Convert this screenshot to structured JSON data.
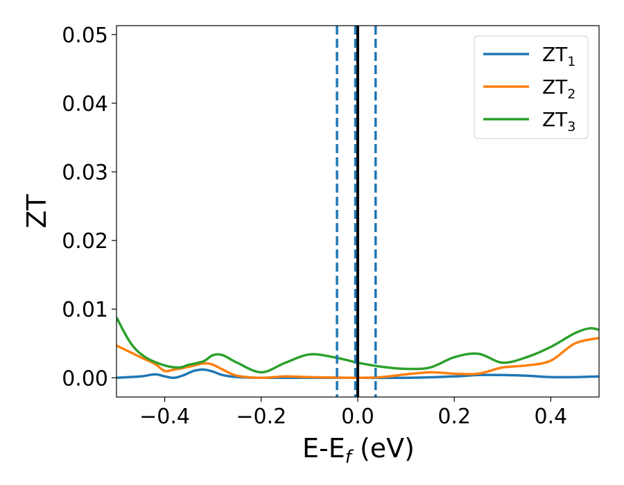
{
  "chart_data": {
    "type": "line",
    "xlabel": "E-E",
    "xlabel_sub": "f",
    "xlabel_unit": " (eV)",
    "ylabel": "ZT",
    "xlim": [
      -0.5,
      0.5
    ],
    "ylim": [
      -0.0028,
      0.0513
    ],
    "xticks": [
      -0.4,
      -0.2,
      0.0,
      0.2,
      0.4
    ],
    "xtick_labels": [
      "−0.4",
      "−0.2",
      "0.0",
      "0.2",
      "0.4"
    ],
    "yticks": [
      0.0,
      0.01,
      0.02,
      0.03,
      0.04,
      0.05
    ],
    "ytick_labels": [
      "0.00",
      "0.01",
      "0.02",
      "0.03",
      "0.04",
      "0.05"
    ],
    "grid": false,
    "legend_position": "top-right",
    "series": [
      {
        "name": "ZT",
        "name_sub": "1",
        "color": "#1f77b4",
        "x": [
          -0.5,
          -0.45,
          -0.42,
          -0.4,
          -0.38,
          -0.36,
          -0.34,
          -0.32,
          -0.3,
          -0.28,
          -0.25,
          -0.2,
          -0.1,
          0.0,
          0.1,
          0.2,
          0.25,
          0.3,
          0.35,
          0.4,
          0.45,
          0.5
        ],
        "y": [
          0.0,
          0.0002,
          0.0005,
          0.0002,
          0.0,
          0.0004,
          0.001,
          0.0012,
          0.0009,
          0.0004,
          0.0001,
          0.0,
          0.0,
          0.0,
          0.0,
          0.0002,
          0.0004,
          0.0004,
          0.0003,
          0.0001,
          0.0001,
          0.0002
        ]
      },
      {
        "name": "ZT",
        "name_sub": "2",
        "color": "#ff7f0e",
        "x": [
          -0.5,
          -0.45,
          -0.42,
          -0.4,
          -0.38,
          -0.35,
          -0.32,
          -0.3,
          -0.28,
          -0.25,
          -0.2,
          -0.15,
          -0.1,
          0.0,
          0.05,
          0.1,
          0.15,
          0.2,
          0.25,
          0.3,
          0.35,
          0.4,
          0.45,
          0.5
        ],
        "y": [
          0.0047,
          0.003,
          0.002,
          0.001,
          0.0012,
          0.0016,
          0.0021,
          0.0019,
          0.0012,
          0.0003,
          0.0,
          0.0002,
          0.0001,
          0.0,
          0.0001,
          0.0005,
          0.0008,
          0.0006,
          0.0006,
          0.0015,
          0.0018,
          0.0025,
          0.005,
          0.0058
        ]
      },
      {
        "name": "ZT",
        "name_sub": "3",
        "color": "#2ca02c",
        "x": [
          -0.5,
          -0.47,
          -0.44,
          -0.4,
          -0.37,
          -0.35,
          -0.32,
          -0.3,
          -0.28,
          -0.25,
          -0.2,
          -0.15,
          -0.1,
          -0.05,
          0.0,
          0.05,
          0.1,
          0.15,
          0.2,
          0.25,
          0.3,
          0.35,
          0.4,
          0.45,
          0.48,
          0.5
        ],
        "y": [
          0.0088,
          0.005,
          0.003,
          0.0018,
          0.0015,
          0.0019,
          0.0024,
          0.0033,
          0.0033,
          0.0022,
          0.0008,
          0.0022,
          0.0034,
          0.003,
          0.0022,
          0.0016,
          0.0013,
          0.0015,
          0.003,
          0.0035,
          0.0022,
          0.003,
          0.0045,
          0.0065,
          0.0072,
          0.007
        ]
      }
    ],
    "vlines": [
      {
        "x": 0.0,
        "color": "#000000",
        "style": "solid"
      },
      {
        "x": -0.043,
        "color": "#1f77b4",
        "style": "dashed"
      },
      {
        "x": -0.005,
        "color": "#1f77b4",
        "style": "dashed"
      },
      {
        "x": 0.037,
        "color": "#1f77b4",
        "style": "dashed"
      }
    ]
  }
}
